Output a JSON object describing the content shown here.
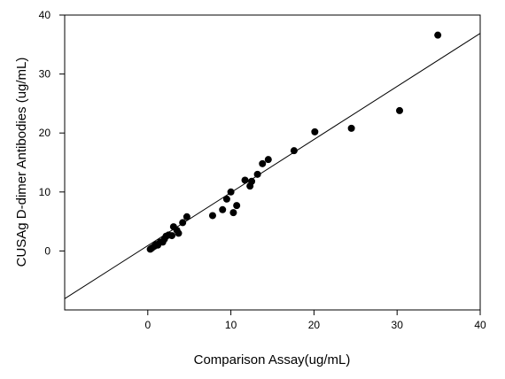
{
  "chart_data": {
    "type": "scatter",
    "title": "",
    "xlabel": "Comparison  Assay(ug/mL)",
    "ylabel": "CUSAg D-dimer Antibodies (ug/mL)",
    "xlim": [
      -10,
      40
    ],
    "ylim": [
      -10,
      40
    ],
    "x_ticks": [
      0,
      10,
      20,
      30,
      40
    ],
    "y_ticks": [
      0,
      10,
      20,
      30,
      40
    ],
    "x_tick_labels": [
      "0",
      "10",
      "20",
      "30",
      "40"
    ],
    "y_tick_labels": [
      "0",
      "10",
      "20",
      "30",
      "40"
    ],
    "grid": false,
    "legend": "none",
    "marker_color": "#000000",
    "series": [
      {
        "points": [
          {
            "x": 0.3,
            "y": 0.3
          },
          {
            "x": 0.5,
            "y": 0.5
          },
          {
            "x": 0.8,
            "y": 0.8
          },
          {
            "x": 1.0,
            "y": 1.1
          },
          {
            "x": 1.2,
            "y": 1.0
          },
          {
            "x": 1.5,
            "y": 1.5
          },
          {
            "x": 1.8,
            "y": 1.5
          },
          {
            "x": 2.0,
            "y": 2.0
          },
          {
            "x": 2.2,
            "y": 2.5
          },
          {
            "x": 2.5,
            "y": 2.7
          },
          {
            "x": 2.9,
            "y": 2.6
          },
          {
            "x": 3.1,
            "y": 4.1
          },
          {
            "x": 3.5,
            "y": 3.5
          },
          {
            "x": 3.7,
            "y": 3.0
          },
          {
            "x": 4.2,
            "y": 4.8
          },
          {
            "x": 4.7,
            "y": 5.8
          },
          {
            "x": 7.8,
            "y": 6.0
          },
          {
            "x": 9.0,
            "y": 7.0
          },
          {
            "x": 9.5,
            "y": 8.8
          },
          {
            "x": 10.0,
            "y": 10.0
          },
          {
            "x": 10.3,
            "y": 6.5
          },
          {
            "x": 10.7,
            "y": 7.7
          },
          {
            "x": 11.7,
            "y": 12.0
          },
          {
            "x": 12.3,
            "y": 11.0
          },
          {
            "x": 12.5,
            "y": 11.8
          },
          {
            "x": 13.2,
            "y": 13.0
          },
          {
            "x": 13.8,
            "y": 14.8
          },
          {
            "x": 14.5,
            "y": 15.5
          },
          {
            "x": 17.6,
            "y": 17.0
          },
          {
            "x": 20.1,
            "y": 20.2
          },
          {
            "x": 24.5,
            "y": 20.8
          },
          {
            "x": 30.3,
            "y": 23.8
          },
          {
            "x": 34.9,
            "y": 36.6
          }
        ]
      }
    ],
    "regression_line": {
      "x1": -10,
      "y1": -8.1,
      "x2": 40,
      "y2": 36.9
    }
  }
}
